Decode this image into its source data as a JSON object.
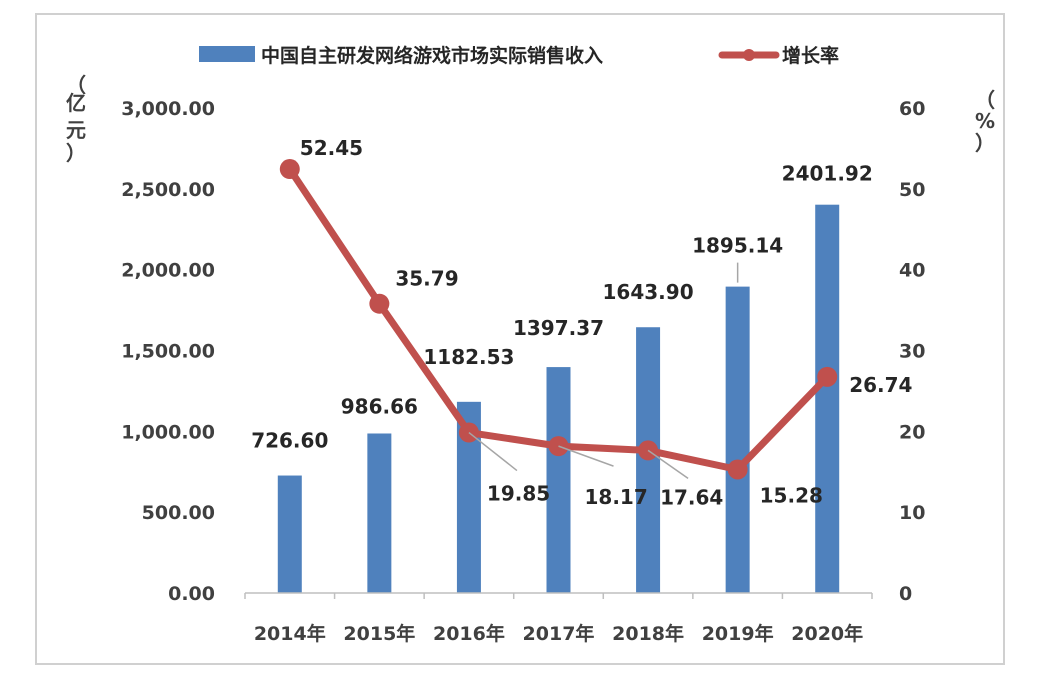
{
  "chart_data": {
    "type": "bar",
    "categories": [
      "2014年",
      "2015年",
      "2016年",
      "2017年",
      "2018年",
      "2019年",
      "2020年"
    ],
    "series": [
      {
        "name": "中国自主研发网络游戏市场实际销售收入",
        "type": "bar",
        "axis": "left",
        "values": [
          726.6,
          986.66,
          1182.53,
          1397.37,
          1643.9,
          1895.14,
          2401.92
        ],
        "labels": [
          "726.60",
          "986.66",
          "1182.53",
          "1397.37",
          "1643.90",
          "1895.14",
          "2401.92"
        ],
        "color": "#4f81bd"
      },
      {
        "name": "增长率",
        "type": "line",
        "axis": "right",
        "values": [
          52.45,
          35.79,
          19.85,
          18.17,
          17.64,
          15.28,
          26.74
        ],
        "labels": [
          "52.45",
          "35.79",
          "19.85",
          "18.17",
          "17.64",
          "15.28",
          "26.74"
        ],
        "color": "#c0504d"
      }
    ],
    "y_left": {
      "unit_chars": [
        "（",
        "亿",
        "元",
        "）"
      ],
      "ylim": [
        0,
        3000
      ],
      "ticks": [
        "0.00",
        "500.00",
        "1,000.00",
        "1,500.00",
        "2,000.00",
        "2,500.00",
        "3,000.00"
      ]
    },
    "y_right": {
      "unit_chars": [
        "（",
        "%",
        "）"
      ],
      "ylim": [
        0,
        60
      ],
      "ticks": [
        "0",
        "10",
        "20",
        "30",
        "40",
        "50",
        "60"
      ]
    },
    "legend": "top",
    "grid": false
  }
}
